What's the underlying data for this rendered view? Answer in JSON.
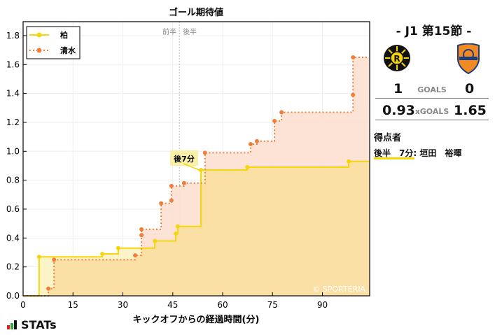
{
  "chart_data": {
    "type": "line",
    "subtype": "step-area",
    "title": "ゴール期待値",
    "xlabel": "キックオフからの経過時間(分)",
    "ylabel": "",
    "xlim": [
      0,
      104
    ],
    "ylim": [
      0,
      1.9
    ],
    "xticks": [
      0,
      15,
      30,
      45,
      60,
      75,
      90
    ],
    "yticks": [
      0.0,
      0.2,
      0.4,
      0.6,
      0.8,
      1.0,
      1.2,
      1.4,
      1.6,
      1.8
    ],
    "grid": true,
    "legend_position": "upper left",
    "halftime_marker": {
      "x": 47,
      "left_label": "前半",
      "right_label": "後半"
    },
    "annotation": {
      "text": "後7分",
      "x": 53.5,
      "y": 0.866
    },
    "watermark": "© SPORTERIA",
    "series": [
      {
        "name": "柏",
        "color": "#f5d60a",
        "line_style": "solid",
        "x": [
          0,
          4.8,
          23.8,
          28.6,
          39.6,
          45.9,
          46.5,
          53.5,
          67.4,
          97.9,
          104
        ],
        "y": [
          0,
          0.27,
          0.29,
          0.33,
          0.38,
          0.43,
          0.48,
          0.87,
          0.89,
          0.93,
          0.93
        ]
      },
      {
        "name": "清水",
        "color": "#f07f3c",
        "line_style": "dotted",
        "x": [
          0,
          7.6,
          9.3,
          33.7,
          35.6,
          35.6,
          41.5,
          44.6,
          44.6,
          48.4,
          54.7,
          68.4,
          70.3,
          75.6,
          77.7,
          99.2,
          99.2,
          104
        ],
        "y": [
          0,
          0.05,
          0.25,
          0.28,
          0.42,
          0.46,
          0.64,
          0.66,
          0.76,
          0.78,
          0.99,
          1.05,
          1.07,
          1.21,
          1.27,
          1.39,
          1.65,
          1.65
        ]
      }
    ]
  },
  "sidebar": {
    "round": "- J1 第15節 -",
    "home_logo": "kashiwa-reysol-crest",
    "away_logo": "shimizu-s-pulse-crest",
    "goals": {
      "home": "1",
      "label": "GOALS",
      "away": "0"
    },
    "xgoals": {
      "home": "0.93",
      "label": "xGOALS",
      "away": "1.65"
    },
    "scorers_heading": "得点者",
    "scorer": "後半　7分: 垣田　裕暉"
  },
  "brand": "STATs"
}
